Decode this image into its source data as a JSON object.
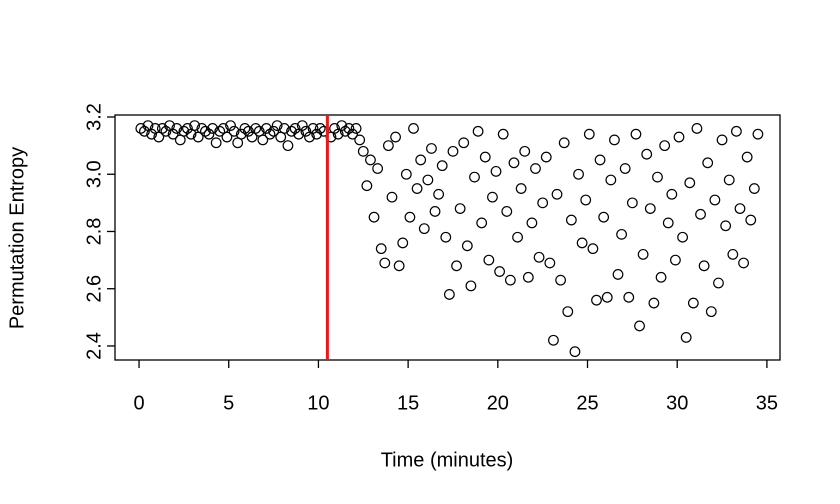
{
  "chart_data": {
    "type": "scatter",
    "xlabel": "Time (minutes)",
    "ylabel": "Permutation Entropy",
    "xlim": [
      -1.34,
      35.73
    ],
    "ylim": [
      2.351,
      3.207
    ],
    "xticks": [
      0,
      5,
      10,
      15,
      20,
      25,
      30,
      35
    ],
    "yticks": [
      2.4,
      2.6,
      2.8,
      {
        "value": 3,
        "label": "3.0"
      },
      3.2
    ],
    "color": "#000000",
    "vline": {
      "x": 10.5,
      "color": "#e41a1c"
    },
    "x": [
      0.1,
      0.3,
      0.5,
      0.7,
      0.9,
      1.1,
      1.3,
      1.5,
      1.7,
      1.9,
      2.1,
      2.3,
      2.5,
      2.7,
      2.9,
      3.1,
      3.3,
      3.5,
      3.7,
      3.9,
      4.1,
      4.3,
      4.5,
      4.7,
      4.9,
      5.1,
      5.3,
      5.5,
      5.7,
      5.9,
      6.1,
      6.3,
      6.5,
      6.7,
      6.9,
      7.1,
      7.3,
      7.5,
      7.7,
      7.9,
      8.1,
      8.3,
      8.5,
      8.7,
      8.9,
      9.1,
      9.3,
      9.5,
      9.7,
      9.9,
      10.1,
      10.3,
      10.7,
      10.9,
      11.1,
      11.3,
      11.5,
      11.7,
      11.9,
      12.1,
      12.3,
      12.5,
      12.7,
      12.9,
      13.1,
      13.3,
      13.5,
      13.7,
      13.9,
      14.1,
      14.3,
      14.5,
      14.7,
      14.9,
      15.1,
      15.3,
      15.5,
      15.7,
      15.9,
      16.1,
      16.3,
      16.5,
      16.7,
      16.9,
      17.1,
      17.3,
      17.5,
      17.7,
      17.9,
      18.1,
      18.3,
      18.5,
      18.7,
      18.9,
      19.1,
      19.3,
      19.5,
      19.7,
      19.9,
      20.1,
      20.3,
      20.5,
      20.7,
      20.9,
      21.1,
      21.3,
      21.5,
      21.7,
      21.9,
      22.1,
      22.3,
      22.5,
      22.7,
      22.9,
      23.1,
      23.3,
      23.5,
      23.7,
      23.9,
      24.1,
      24.3,
      24.5,
      24.7,
      24.9,
      25.1,
      25.3,
      25.5,
      25.7,
      25.9,
      26.1,
      26.3,
      26.5,
      26.7,
      26.9,
      27.1,
      27.3,
      27.5,
      27.7,
      27.9,
      28.1,
      28.3,
      28.5,
      28.7,
      28.9,
      29.1,
      29.3,
      29.5,
      29.7,
      29.9,
      30.1,
      30.3,
      30.5,
      30.7,
      30.9,
      31.1,
      31.3,
      31.5,
      31.7,
      31.9,
      32.1,
      32.3,
      32.5,
      32.7,
      32.9,
      33.1,
      33.3,
      33.5,
      33.7,
      33.9,
      34.1,
      34.3,
      34.5
    ],
    "y": [
      3.16,
      3.15,
      3.17,
      3.14,
      3.16,
      3.13,
      3.16,
      3.15,
      3.17,
      3.14,
      3.16,
      3.12,
      3.15,
      3.16,
      3.14,
      3.17,
      3.13,
      3.16,
      3.15,
      3.14,
      3.16,
      3.11,
      3.15,
      3.16,
      3.13,
      3.17,
      3.15,
      3.11,
      3.14,
      3.16,
      3.15,
      3.13,
      3.16,
      3.15,
      3.12,
      3.16,
      3.14,
      3.15,
      3.17,
      3.13,
      3.16,
      3.1,
      3.15,
      3.16,
      3.14,
      3.17,
      3.15,
      3.13,
      3.16,
      3.14,
      3.16,
      3.15,
      3.13,
      3.16,
      3.14,
      3.17,
      3.15,
      3.16,
      3.14,
      3.16,
      3.12,
      3.08,
      2.96,
      3.05,
      2.85,
      3.02,
      2.74,
      2.69,
      3.1,
      2.92,
      3.13,
      2.68,
      2.76,
      3.0,
      2.85,
      3.16,
      2.95,
      3.05,
      2.81,
      2.98,
      3.09,
      2.87,
      2.93,
      3.03,
      2.78,
      2.58,
      3.08,
      2.68,
      2.88,
      3.11,
      2.75,
      2.61,
      2.99,
      3.15,
      2.83,
      3.06,
      2.7,
      2.92,
      3.01,
      2.66,
      3.14,
      2.87,
      2.63,
      3.04,
      2.78,
      2.95,
      3.08,
      2.64,
      2.83,
      3.02,
      2.71,
      2.9,
      3.06,
      2.69,
      2.42,
      2.93,
      2.63,
      3.11,
      2.52,
      2.84,
      2.38,
      3.0,
      2.76,
      2.91,
      3.14,
      2.74,
      2.56,
      3.05,
      2.85,
      2.57,
      2.98,
      3.12,
      2.65,
      2.79,
      3.02,
      2.57,
      2.9,
      3.14,
      2.47,
      2.72,
      3.07,
      2.88,
      2.55,
      2.99,
      2.64,
      3.1,
      2.83,
      2.93,
      2.7,
      3.13,
      2.78,
      2.43,
      2.97,
      2.55,
      3.16,
      2.86,
      2.68,
      3.04,
      2.52,
      2.91,
      2.62,
      3.12,
      2.82,
      2.98,
      2.72,
      3.15,
      2.88,
      2.69,
      3.06,
      2.84,
      2.95,
      3.14
    ]
  }
}
